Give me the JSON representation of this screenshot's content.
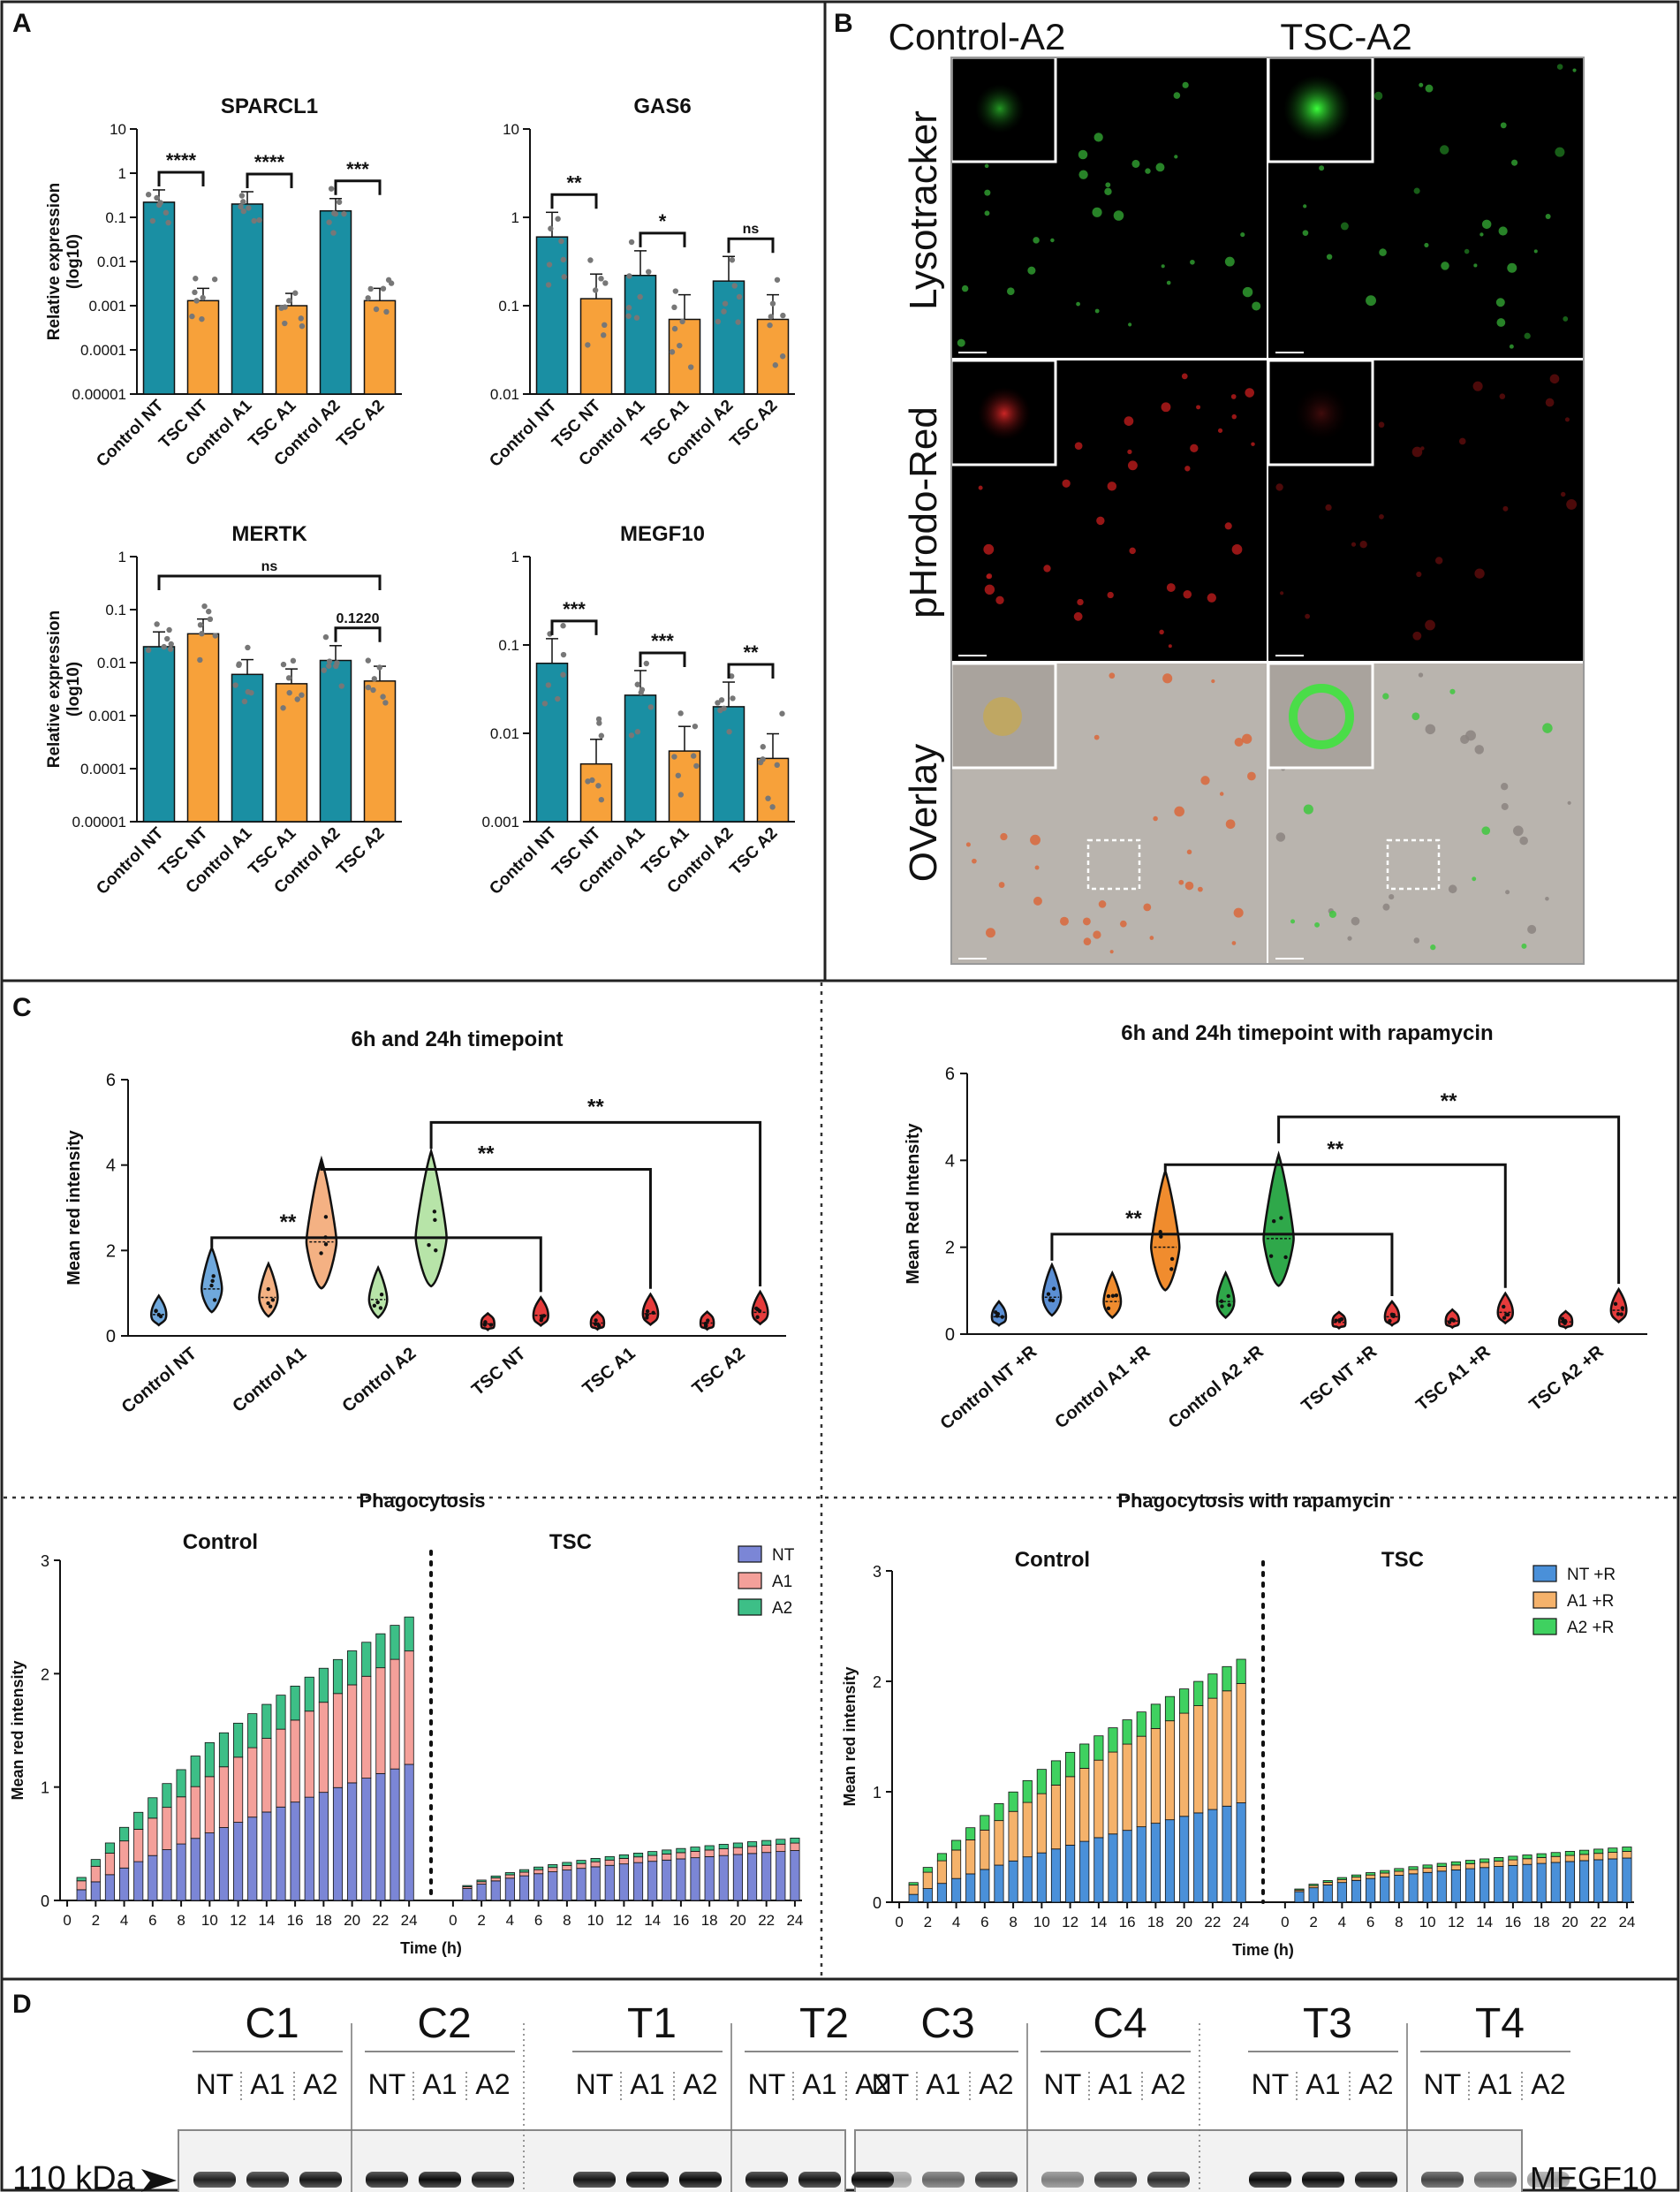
{
  "panel_letters": [
    "A",
    "B",
    "C",
    "D"
  ],
  "colors": {
    "control": "#1a8fa3",
    "tsc": "#f7a13a",
    "nt": "#7b86d6",
    "a1": "#f4a09a",
    "a2": "#3dbf87",
    "ntR": "#4a90d9",
    "a1R": "#f5b26b",
    "a2R": "#3fd160",
    "v_ctrl_nt": "#6fa8dc",
    "v_ctrl_a1": "#f4b183",
    "v_ctrl_a2": "#b7e4a8",
    "v_tsc_nt": "#e63b3b",
    "v_tsc_a1": "#e63b3b",
    "v_tsc_a2": "#e63b3b",
    "vr_ctrl_nt": "#5b8fd4",
    "vr_ctrl_a1": "#f08c2e",
    "vr_ctrl_a2": "#2fa84a"
  },
  "chart_data": [
    {
      "id": "sparcl1",
      "type": "bar",
      "title": "SPARCL1",
      "scale": "log10",
      "ylabel": "Relative expression (log10)",
      "yticks": [
        "10",
        "1",
        "0.1",
        "0.01",
        "0.001",
        "0.0001",
        "0.00001"
      ],
      "ylim_exp": [
        -5,
        1
      ],
      "categories": [
        "Control NT",
        "TSC NT",
        "Control A1",
        "TSC A1",
        "Control A2",
        "TSC A2"
      ],
      "values": [
        0.22,
        0.0013,
        0.2,
        0.001,
        0.14,
        0.0013
      ],
      "sig": [
        {
          "a": 0,
          "b": 1,
          "label": "****"
        },
        {
          "a": 2,
          "b": 3,
          "label": "****"
        },
        {
          "a": 4,
          "b": 5,
          "label": "***"
        }
      ]
    },
    {
      "id": "gas6",
      "type": "bar",
      "title": "GAS6",
      "scale": "log10",
      "ylabel": "",
      "yticks": [
        "10",
        "1",
        "0.1",
        "0.01"
      ],
      "ylim_exp": [
        -2,
        1
      ],
      "categories": [
        "Control NT",
        "TSC NT",
        "Control A1",
        "TSC A1",
        "Control A2",
        "TSC A2"
      ],
      "values": [
        0.6,
        0.12,
        0.22,
        0.07,
        0.19,
        0.07
      ],
      "sig": [
        {
          "a": 0,
          "b": 1,
          "label": "**"
        },
        {
          "a": 2,
          "b": 3,
          "label": "*"
        },
        {
          "a": 4,
          "b": 5,
          "label": "ns"
        }
      ]
    },
    {
      "id": "mertk",
      "type": "bar",
      "title": "MERTK",
      "scale": "log10",
      "ylabel": "Relative expression (log10)",
      "yticks": [
        "1",
        "0.1",
        "0.01",
        "0.001",
        "0.0001",
        "0.00001"
      ],
      "ylim_exp": [
        -5,
        0
      ],
      "categories": [
        "Control NT",
        "TSC NT",
        "Control A1",
        "TSC A1",
        "Control A2",
        "TSC A2"
      ],
      "values": [
        0.02,
        0.035,
        0.006,
        0.004,
        0.011,
        0.0045
      ],
      "sig": [
        {
          "a": 0,
          "b": 5,
          "label": "ns",
          "wide": true
        },
        {
          "a": 4,
          "b": 5,
          "label": "0.1220"
        }
      ]
    },
    {
      "id": "megf10",
      "type": "bar",
      "title": "MEGF10",
      "scale": "log10",
      "ylabel": "",
      "yticks": [
        "1",
        "0.1",
        "0.01",
        "0.001"
      ],
      "ylim_exp": [
        -3,
        0
      ],
      "categories": [
        "Control NT",
        "TSC NT",
        "Control A1",
        "TSC A1",
        "Control A2",
        "TSC A2"
      ],
      "values": [
        0.062,
        0.0045,
        0.027,
        0.0063,
        0.02,
        0.0052
      ],
      "sig": [
        {
          "a": 0,
          "b": 1,
          "label": "***"
        },
        {
          "a": 2,
          "b": 3,
          "label": "***"
        },
        {
          "a": 4,
          "b": 5,
          "label": "**"
        }
      ]
    },
    {
      "id": "violin1",
      "type": "violin",
      "title": "6h and 24h timepoint",
      "ylabel": "Mean red intensity",
      "yticks": [
        "0",
        "2",
        "4",
        "6"
      ],
      "ylim": [
        0,
        6
      ],
      "groups": [
        "Control NT",
        "Control A1",
        "Control A2",
        "TSC NT",
        "TSC A1",
        "TSC A2"
      ],
      "pairs": [
        [
          0.5,
          1.1
        ],
        [
          0.9,
          2.2
        ],
        [
          0.85,
          2.3
        ],
        [
          0.28,
          0.48
        ],
        [
          0.3,
          0.52
        ],
        [
          0.3,
          0.55
        ]
      ],
      "sig": [
        {
          "label": "**"
        },
        {
          "label": "**"
        },
        {
          "label": "**"
        }
      ]
    },
    {
      "id": "violin2",
      "type": "violin",
      "title": "6h and 24h timepoint with rapamycin",
      "ylabel": "Mean Red Intensity",
      "yticks": [
        "0",
        "2",
        "4",
        "6"
      ],
      "ylim": [
        0,
        6
      ],
      "groups": [
        "Control NT +R",
        "Control A1 +R",
        "Control A2 +R",
        "TSC NT +R",
        "TSC A1 +R",
        "TSC A2 +R"
      ],
      "pairs": [
        [
          0.4,
          0.85
        ],
        [
          0.75,
          2.0
        ],
        [
          0.75,
          2.2
        ],
        [
          0.27,
          0.4
        ],
        [
          0.3,
          0.5
        ],
        [
          0.28,
          0.55
        ]
      ],
      "sig": [
        {
          "label": "**"
        },
        {
          "label": "**"
        },
        {
          "label": "**"
        }
      ]
    },
    {
      "id": "phago1",
      "type": "bar",
      "stacked": true,
      "title": "Phagocytosis",
      "ylabel": "Mean red intensity",
      "xlabel": "Time (h)",
      "yticks": [
        "0",
        "1",
        "2",
        "3"
      ],
      "ylim": [
        0,
        3
      ],
      "xticks": [
        "0",
        "2",
        "4",
        "6",
        "8",
        "10",
        "12",
        "14",
        "16",
        "18",
        "20",
        "22",
        "24"
      ],
      "group_labels": [
        "Control",
        "TSC"
      ],
      "legend": [
        "NT",
        "A1",
        "A2"
      ],
      "control_total_24h": 2.5,
      "control_nt_24h": 1.2,
      "control_a1_24h": 1.0,
      "control_a2_24h": 0.3,
      "tsc_total_24h": 0.55
    },
    {
      "id": "phago2",
      "type": "bar",
      "stacked": true,
      "title": "Phagocytosis with rapamycin",
      "ylabel": "Mean red intensity",
      "xlabel": "Time (h)",
      "yticks": [
        "0",
        "1",
        "2",
        "3"
      ],
      "ylim": [
        0,
        3
      ],
      "xticks": [
        "0",
        "2",
        "4",
        "6",
        "8",
        "10",
        "12",
        "14",
        "16",
        "18",
        "20",
        "22",
        "24"
      ],
      "group_labels": [
        "Control",
        "TSC"
      ],
      "legend": [
        "NT +R",
        "A1 +R",
        "A2 +R"
      ],
      "control_total_24h": 2.2,
      "control_nt_24h": 0.9,
      "control_a1_24h": 1.08,
      "control_a2_24h": 0.22,
      "tsc_total_24h": 0.5
    }
  ],
  "microscopy": {
    "columns": [
      "Control-A2",
      "TSC-A2"
    ],
    "rows": [
      "Lysotracker",
      "pHrodo-Red",
      "OVerlay"
    ]
  },
  "western": {
    "samples_left": [
      "C1",
      "C2",
      "T1",
      "T2"
    ],
    "samples_right": [
      "C3",
      "C4",
      "T3",
      "T4"
    ],
    "lanes": [
      "NT",
      "A1",
      "A2"
    ],
    "marker": "110 kDa",
    "protein": "MEGF10"
  }
}
